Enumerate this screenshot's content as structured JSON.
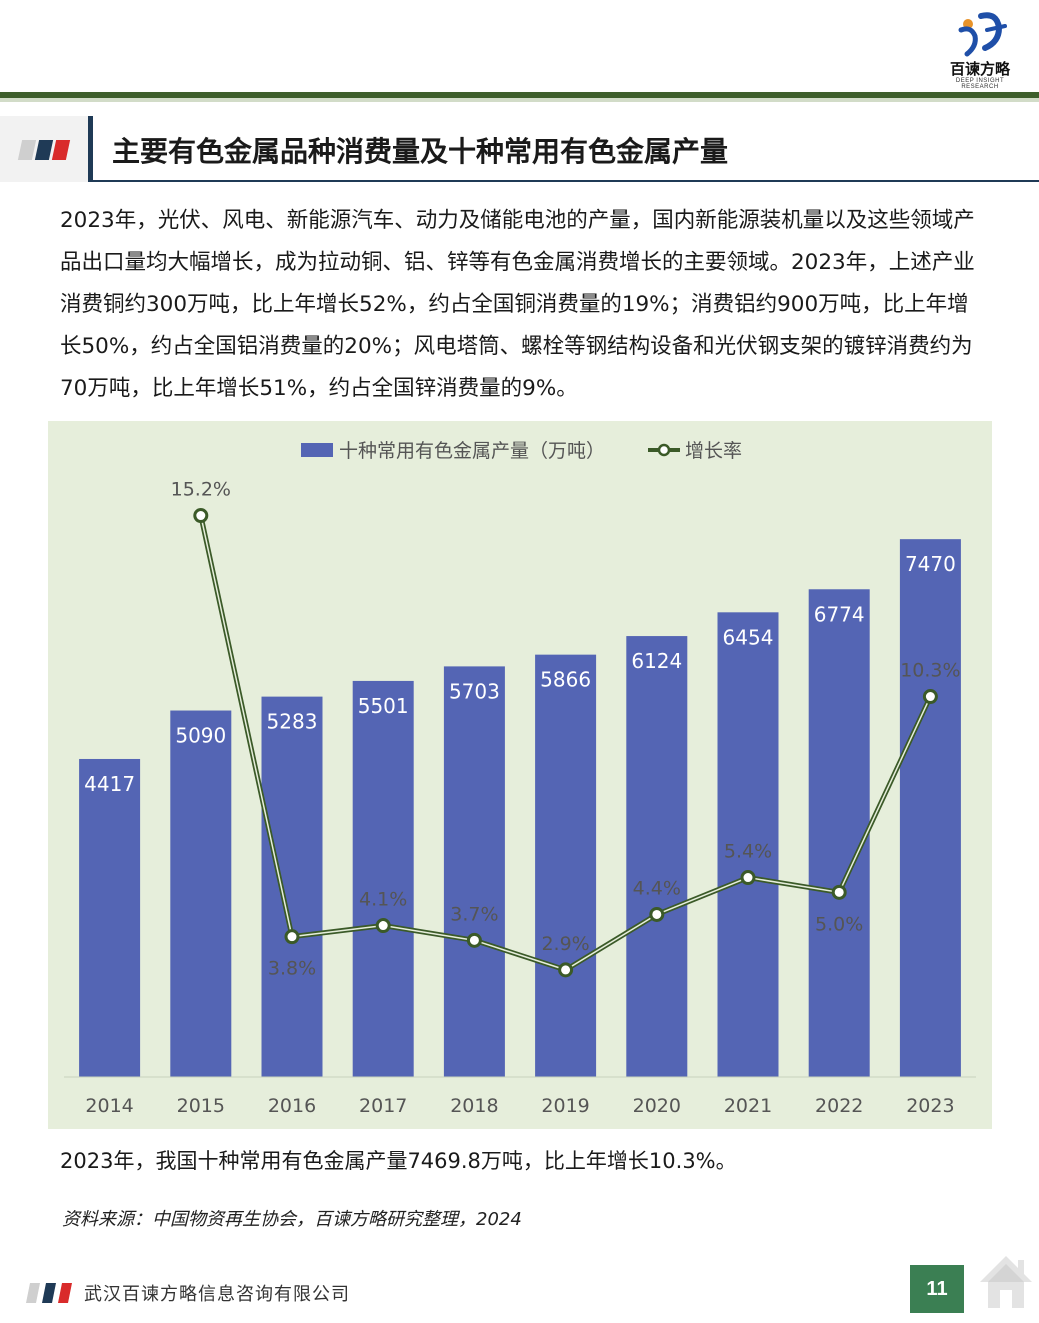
{
  "header": {
    "logo_brand": "百谏方略",
    "logo_sub": "DEEP INSIGHT RESEARCH"
  },
  "section": {
    "title": "主要有色金属品种消费量及十种常用有色金属产量"
  },
  "body": {
    "paragraph": "2023年，光伏、风电、新能源汽车、动力及储能电池的产量，国内新能源装机量以及这些领域产品出口量均大幅增长，成为拉动铜、铝、锌等有色金属消费增长的主要领域。2023年，上述产业消费铜约300万吨，比上年增长52%，约占全国铜消费量的19%；消费铝约900万吨，比上年增长50%，约占全国铝消费量的20%；风电塔筒、螺栓等钢结构设备和光伏钢支架的镀锌消费约为70万吨，比上年增长51%，约占全国锌消费量的9%。",
    "caption": "2023年，我国十种常用有色金属产量7469.8万吨，比上年增长10.3%。",
    "source": "资料来源：中国物资再生协会，百谏方略研究整理，2024"
  },
  "chart_data": {
    "type": "bar",
    "title": "",
    "categories": [
      "2014",
      "2015",
      "2016",
      "2017",
      "2018",
      "2019",
      "2020",
      "2021",
      "2022",
      "2023"
    ],
    "series": [
      {
        "name": "十种常用有色金属产量（万吨）",
        "type": "bar",
        "axis": "left",
        "values": [
          4417,
          5090,
          5283,
          5501,
          5703,
          5866,
          6124,
          6454,
          6774,
          7470
        ],
        "labels": [
          "4417",
          "5090",
          "5283",
          "5501",
          "5703",
          "5866",
          "6124",
          "6454",
          "6774",
          "7470"
        ]
      },
      {
        "name": "增长率",
        "type": "line",
        "axis": "right",
        "values": [
          null,
          15.2,
          3.8,
          4.1,
          3.7,
          2.9,
          4.4,
          5.4,
          5.0,
          10.3
        ],
        "labels": [
          "",
          "15.2%",
          "3.8%",
          "4.1%",
          "3.7%",
          "2.9%",
          "4.4%",
          "5.4%",
          "5.0%",
          "10.3%"
        ]
      }
    ],
    "ylim_left": [
      0,
      8000
    ],
    "ylim_right": [
      0,
      16
    ],
    "legend_position": "top-center",
    "grid": false,
    "colors": {
      "bar": "#5465b4",
      "line": "#3b5a28",
      "marker_fill": "#ffffff",
      "background": "#e6eedb",
      "label_inside": "#ffffff",
      "label_outside": "#555555",
      "axis_text": "#555555"
    }
  },
  "footer": {
    "company": "武汉百谏方略信息咨询有限公司",
    "page": "11"
  },
  "colors": {
    "accent_dark_green": "#3f5f2c",
    "page_box_green": "#3b7f53",
    "navy": "#1f3a56",
    "red": "#d92b2b"
  },
  "icons": {
    "logo": "brand-logo-icon",
    "home": "home-icon",
    "stripes": "tricolor-stripes-icon"
  }
}
